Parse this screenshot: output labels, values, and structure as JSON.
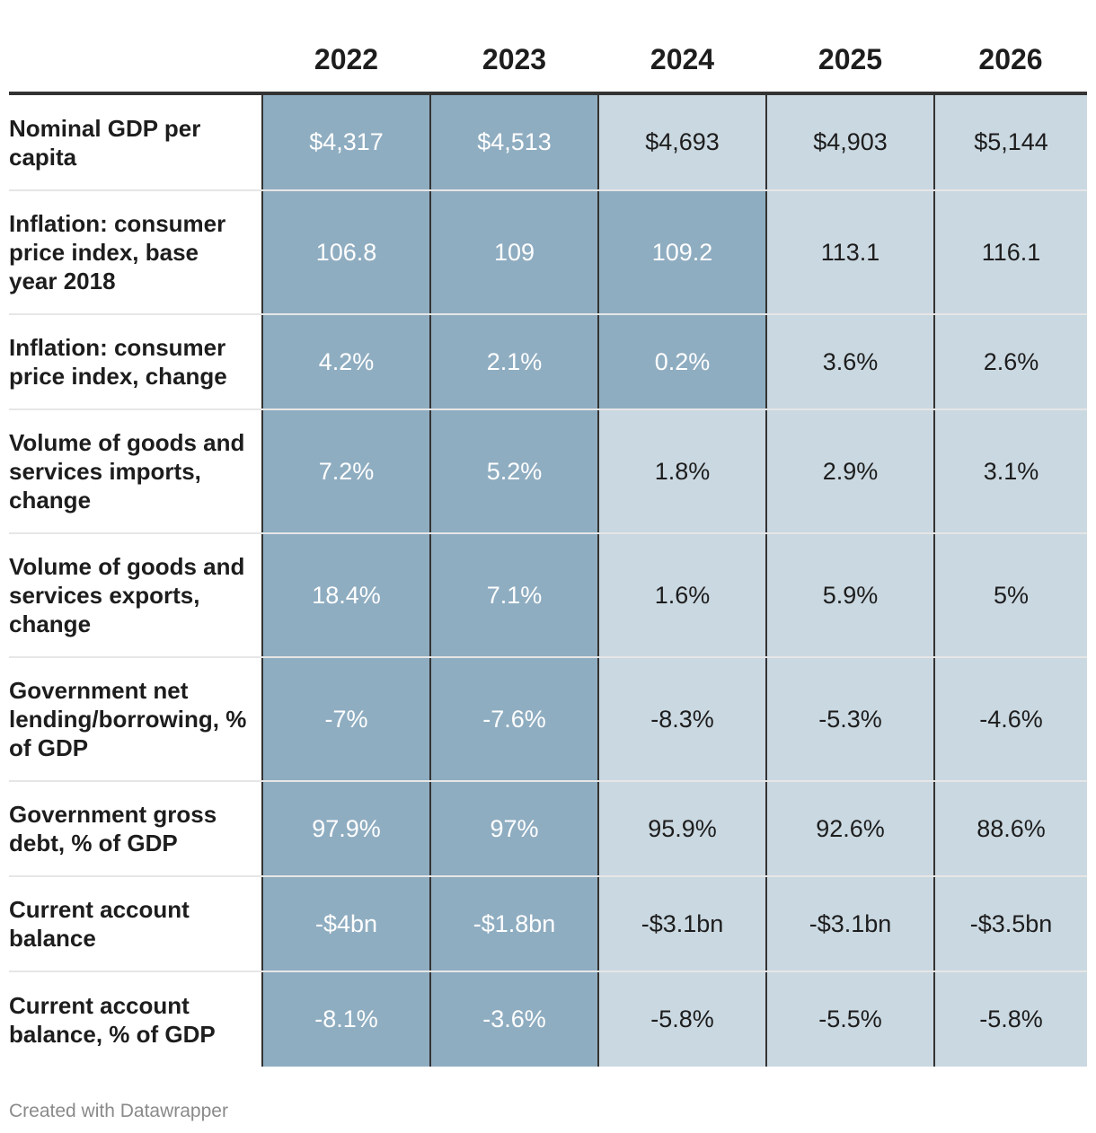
{
  "chart_data": {
    "type": "table",
    "columns": [
      "2022",
      "2023",
      "2024",
      "2025",
      "2026"
    ],
    "rows": [
      {
        "label": "Nominal GDP per capita",
        "values": [
          "$4,317",
          "$4,513",
          "$4,693",
          "$4,903",
          "$5,144"
        ],
        "shade": [
          "dark",
          "dark",
          "light",
          "light",
          "light"
        ]
      },
      {
        "label": "Inflation: consumer price index, base year 2018",
        "values": [
          "106.8",
          "109",
          "109.2",
          "113.1",
          "116.1"
        ],
        "shade": [
          "dark",
          "dark",
          "dark",
          "light",
          "light"
        ]
      },
      {
        "label": "Inflation: consumer price index, change",
        "values": [
          "4.2%",
          "2.1%",
          "0.2%",
          "3.6%",
          "2.6%"
        ],
        "shade": [
          "dark",
          "dark",
          "dark",
          "light",
          "light"
        ]
      },
      {
        "label": "Volume of goods and services imports, change",
        "values": [
          "7.2%",
          "5.2%",
          "1.8%",
          "2.9%",
          "3.1%"
        ],
        "shade": [
          "dark",
          "dark",
          "light",
          "light",
          "light"
        ]
      },
      {
        "label": "Volume of goods and services exports, change",
        "values": [
          "18.4%",
          "7.1%",
          "1.6%",
          "5.9%",
          "5%"
        ],
        "shade": [
          "dark",
          "dark",
          "light",
          "light",
          "light"
        ]
      },
      {
        "label": "Government net lending/borrowing, % of GDP",
        "values": [
          "-7%",
          "-7.6%",
          "-8.3%",
          "-5.3%",
          "-4.6%"
        ],
        "shade": [
          "dark",
          "dark",
          "light",
          "light",
          "light"
        ]
      },
      {
        "label": "Government gross debt, % of GDP",
        "values": [
          "97.9%",
          "97%",
          "95.9%",
          "92.6%",
          "88.6%"
        ],
        "shade": [
          "dark",
          "dark",
          "light",
          "light",
          "light"
        ]
      },
      {
        "label": "Current account balance",
        "values": [
          "-$4bn",
          "-$1.8bn",
          "-$3.1bn",
          "-$3.1bn",
          "-$3.5bn"
        ],
        "shade": [
          "dark",
          "dark",
          "light",
          "light",
          "light"
        ]
      },
      {
        "label": "Current account balance, % of GDP",
        "values": [
          "-8.1%",
          "-3.6%",
          "-5.8%",
          "-5.5%",
          "-5.8%"
        ],
        "shade": [
          "dark",
          "dark",
          "light",
          "light",
          "light"
        ]
      }
    ],
    "colors": {
      "dark": "#8fadc1",
      "light": "#cad8e1"
    }
  },
  "footer": {
    "credit": "Created with Datawrapper"
  }
}
